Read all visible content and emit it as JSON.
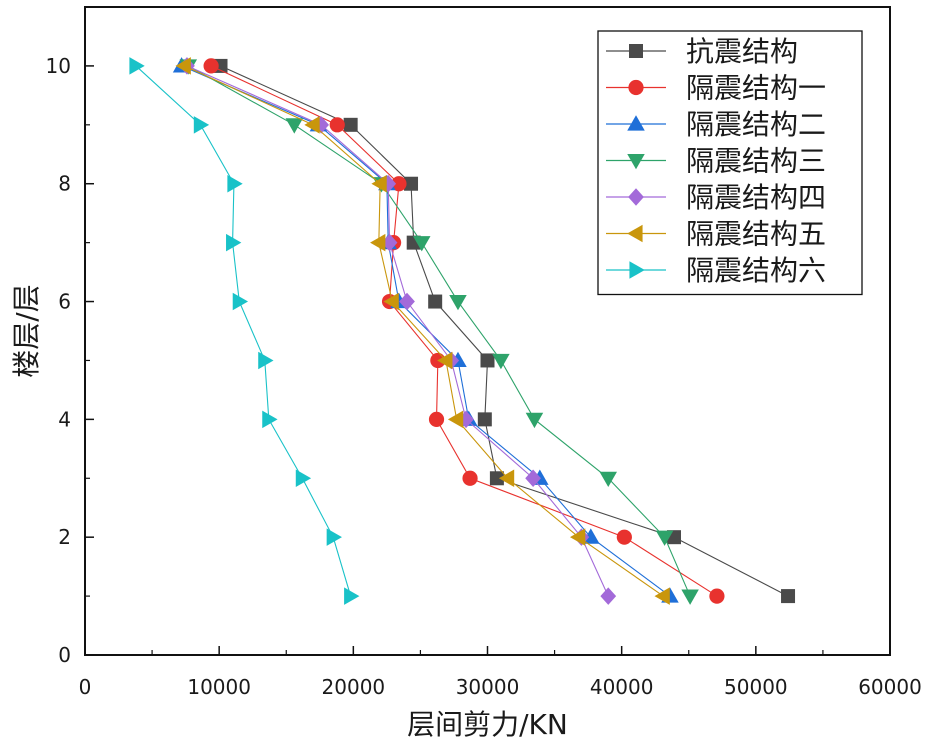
{
  "chart_data": {
    "type": "line",
    "title": "",
    "xlabel": "层间剪力/KN",
    "ylabel": "楼层/层",
    "xlim": [
      0,
      60000
    ],
    "ylim": [
      0,
      11
    ],
    "x_ticks": [
      0,
      10000,
      20000,
      30000,
      40000,
      50000,
      60000
    ],
    "y_ticks": [
      0,
      2,
      4,
      6,
      8,
      10
    ],
    "grid": false,
    "legend_position": "top-right",
    "y": [
      1,
      2,
      3,
      4,
      5,
      6,
      7,
      8,
      9,
      10
    ],
    "series": [
      {
        "name": "抗震结构",
        "color": "#4a4a4a",
        "marker": "square",
        "x": [
          52400,
          43900,
          30700,
          29800,
          30000,
          26100,
          24500,
          24300,
          19800,
          10100
        ]
      },
      {
        "name": "隔震结构一",
        "color": "#e8322e",
        "marker": "circle",
        "x": [
          47100,
          40200,
          28700,
          26200,
          26300,
          22700,
          23000,
          23400,
          18800,
          9400
        ]
      },
      {
        "name": "隔震结构二",
        "color": "#1f6fd8",
        "marker": "triangle-up",
        "x": [
          43600,
          37700,
          33900,
          28600,
          27800,
          23400,
          22600,
          22500,
          17400,
          7200
        ]
      },
      {
        "name": "隔震结构三",
        "color": "#2ea36a",
        "marker": "triangle-down",
        "x": [
          45100,
          43200,
          39000,
          33500,
          31000,
          27800,
          25100,
          22100,
          15600,
          7700
        ]
      },
      {
        "name": "隔震结构四",
        "color": "#a36ad9",
        "marker": "diamond",
        "x": [
          39000,
          37000,
          33400,
          28400,
          27300,
          24000,
          22700,
          22600,
          17600,
          7600
        ]
      },
      {
        "name": "隔震结构五",
        "color": "#c9960c",
        "marker": "triangle-left",
        "x": [
          43100,
          36800,
          31500,
          27700,
          26900,
          22900,
          21900,
          22000,
          17000,
          7400
        ]
      },
      {
        "name": "隔震结构六",
        "color": "#19c2c8",
        "marker": "triangle-right",
        "x": [
          19800,
          18500,
          16200,
          13700,
          13400,
          11500,
          11000,
          11100,
          8600,
          3800
        ]
      }
    ]
  }
}
